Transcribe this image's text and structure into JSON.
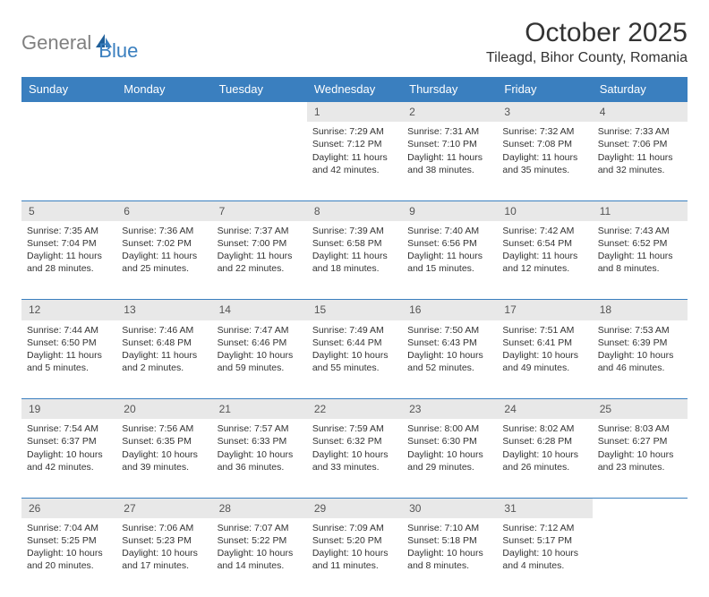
{
  "logo": {
    "general": "General",
    "blue": "Blue"
  },
  "title": "October 2025",
  "location": "Tileagd, Bihor County, Romania",
  "day_headers": [
    "Sunday",
    "Monday",
    "Tuesday",
    "Wednesday",
    "Thursday",
    "Friday",
    "Saturday"
  ],
  "colors": {
    "header_bg": "#3a7fbf",
    "header_fg": "#ffffff",
    "daynum_bg": "#e8e8e8",
    "border": "#3a7fbf",
    "text": "#333333",
    "logo_gray": "#808080",
    "logo_blue": "#3a7fbf"
  },
  "weeks": [
    {
      "nums": [
        "",
        "",
        "",
        "1",
        "2",
        "3",
        "4"
      ],
      "cells": [
        null,
        null,
        null,
        {
          "sr": "Sunrise: 7:29 AM",
          "ss": "Sunset: 7:12 PM",
          "d1": "Daylight: 11 hours",
          "d2": "and 42 minutes."
        },
        {
          "sr": "Sunrise: 7:31 AM",
          "ss": "Sunset: 7:10 PM",
          "d1": "Daylight: 11 hours",
          "d2": "and 38 minutes."
        },
        {
          "sr": "Sunrise: 7:32 AM",
          "ss": "Sunset: 7:08 PM",
          "d1": "Daylight: 11 hours",
          "d2": "and 35 minutes."
        },
        {
          "sr": "Sunrise: 7:33 AM",
          "ss": "Sunset: 7:06 PM",
          "d1": "Daylight: 11 hours",
          "d2": "and 32 minutes."
        }
      ]
    },
    {
      "nums": [
        "5",
        "6",
        "7",
        "8",
        "9",
        "10",
        "11"
      ],
      "cells": [
        {
          "sr": "Sunrise: 7:35 AM",
          "ss": "Sunset: 7:04 PM",
          "d1": "Daylight: 11 hours",
          "d2": "and 28 minutes."
        },
        {
          "sr": "Sunrise: 7:36 AM",
          "ss": "Sunset: 7:02 PM",
          "d1": "Daylight: 11 hours",
          "d2": "and 25 minutes."
        },
        {
          "sr": "Sunrise: 7:37 AM",
          "ss": "Sunset: 7:00 PM",
          "d1": "Daylight: 11 hours",
          "d2": "and 22 minutes."
        },
        {
          "sr": "Sunrise: 7:39 AM",
          "ss": "Sunset: 6:58 PM",
          "d1": "Daylight: 11 hours",
          "d2": "and 18 minutes."
        },
        {
          "sr": "Sunrise: 7:40 AM",
          "ss": "Sunset: 6:56 PM",
          "d1": "Daylight: 11 hours",
          "d2": "and 15 minutes."
        },
        {
          "sr": "Sunrise: 7:42 AM",
          "ss": "Sunset: 6:54 PM",
          "d1": "Daylight: 11 hours",
          "d2": "and 12 minutes."
        },
        {
          "sr": "Sunrise: 7:43 AM",
          "ss": "Sunset: 6:52 PM",
          "d1": "Daylight: 11 hours",
          "d2": "and 8 minutes."
        }
      ]
    },
    {
      "nums": [
        "12",
        "13",
        "14",
        "15",
        "16",
        "17",
        "18"
      ],
      "cells": [
        {
          "sr": "Sunrise: 7:44 AM",
          "ss": "Sunset: 6:50 PM",
          "d1": "Daylight: 11 hours",
          "d2": "and 5 minutes."
        },
        {
          "sr": "Sunrise: 7:46 AM",
          "ss": "Sunset: 6:48 PM",
          "d1": "Daylight: 11 hours",
          "d2": "and 2 minutes."
        },
        {
          "sr": "Sunrise: 7:47 AM",
          "ss": "Sunset: 6:46 PM",
          "d1": "Daylight: 10 hours",
          "d2": "and 59 minutes."
        },
        {
          "sr": "Sunrise: 7:49 AM",
          "ss": "Sunset: 6:44 PM",
          "d1": "Daylight: 10 hours",
          "d2": "and 55 minutes."
        },
        {
          "sr": "Sunrise: 7:50 AM",
          "ss": "Sunset: 6:43 PM",
          "d1": "Daylight: 10 hours",
          "d2": "and 52 minutes."
        },
        {
          "sr": "Sunrise: 7:51 AM",
          "ss": "Sunset: 6:41 PM",
          "d1": "Daylight: 10 hours",
          "d2": "and 49 minutes."
        },
        {
          "sr": "Sunrise: 7:53 AM",
          "ss": "Sunset: 6:39 PM",
          "d1": "Daylight: 10 hours",
          "d2": "and 46 minutes."
        }
      ]
    },
    {
      "nums": [
        "19",
        "20",
        "21",
        "22",
        "23",
        "24",
        "25"
      ],
      "cells": [
        {
          "sr": "Sunrise: 7:54 AM",
          "ss": "Sunset: 6:37 PM",
          "d1": "Daylight: 10 hours",
          "d2": "and 42 minutes."
        },
        {
          "sr": "Sunrise: 7:56 AM",
          "ss": "Sunset: 6:35 PM",
          "d1": "Daylight: 10 hours",
          "d2": "and 39 minutes."
        },
        {
          "sr": "Sunrise: 7:57 AM",
          "ss": "Sunset: 6:33 PM",
          "d1": "Daylight: 10 hours",
          "d2": "and 36 minutes."
        },
        {
          "sr": "Sunrise: 7:59 AM",
          "ss": "Sunset: 6:32 PM",
          "d1": "Daylight: 10 hours",
          "d2": "and 33 minutes."
        },
        {
          "sr": "Sunrise: 8:00 AM",
          "ss": "Sunset: 6:30 PM",
          "d1": "Daylight: 10 hours",
          "d2": "and 29 minutes."
        },
        {
          "sr": "Sunrise: 8:02 AM",
          "ss": "Sunset: 6:28 PM",
          "d1": "Daylight: 10 hours",
          "d2": "and 26 minutes."
        },
        {
          "sr": "Sunrise: 8:03 AM",
          "ss": "Sunset: 6:27 PM",
          "d1": "Daylight: 10 hours",
          "d2": "and 23 minutes."
        }
      ]
    },
    {
      "nums": [
        "26",
        "27",
        "28",
        "29",
        "30",
        "31",
        ""
      ],
      "cells": [
        {
          "sr": "Sunrise: 7:04 AM",
          "ss": "Sunset: 5:25 PM",
          "d1": "Daylight: 10 hours",
          "d2": "and 20 minutes."
        },
        {
          "sr": "Sunrise: 7:06 AM",
          "ss": "Sunset: 5:23 PM",
          "d1": "Daylight: 10 hours",
          "d2": "and 17 minutes."
        },
        {
          "sr": "Sunrise: 7:07 AM",
          "ss": "Sunset: 5:22 PM",
          "d1": "Daylight: 10 hours",
          "d2": "and 14 minutes."
        },
        {
          "sr": "Sunrise: 7:09 AM",
          "ss": "Sunset: 5:20 PM",
          "d1": "Daylight: 10 hours",
          "d2": "and 11 minutes."
        },
        {
          "sr": "Sunrise: 7:10 AM",
          "ss": "Sunset: 5:18 PM",
          "d1": "Daylight: 10 hours",
          "d2": "and 8 minutes."
        },
        {
          "sr": "Sunrise: 7:12 AM",
          "ss": "Sunset: 5:17 PM",
          "d1": "Daylight: 10 hours",
          "d2": "and 4 minutes."
        },
        null
      ]
    }
  ]
}
